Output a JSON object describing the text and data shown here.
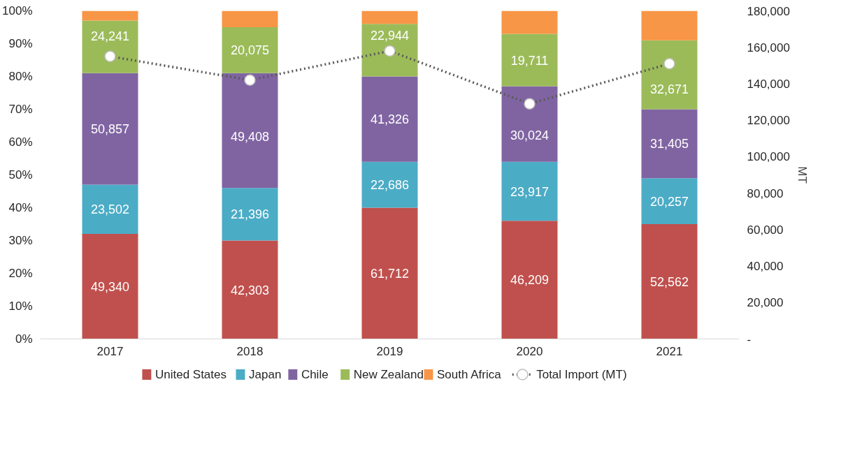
{
  "chart_data": {
    "type": "bar",
    "stacked": true,
    "categories": [
      "2017",
      "2018",
      "2019",
      "2020",
      "2021"
    ],
    "ylim": [
      0,
      100
    ],
    "yticks": [
      {
        "value": 0,
        "label": "0%"
      },
      {
        "value": 10,
        "label": "10%"
      },
      {
        "value": 20,
        "label": "20%"
      },
      {
        "value": 30,
        "label": "30%"
      },
      {
        "value": 40,
        "label": "40%"
      },
      {
        "value": 50,
        "label": "50%"
      },
      {
        "value": 60,
        "label": "60%"
      },
      {
        "value": 70,
        "label": "70%"
      },
      {
        "value": 80,
        "label": "80%"
      },
      {
        "value": 90,
        "label": "90%"
      },
      {
        "value": 100,
        "label": "100%"
      }
    ],
    "y2lim": [
      0,
      180000
    ],
    "y2ticks": [
      {
        "value": 0,
        "label": "-"
      },
      {
        "value": 20000,
        "label": "20,000"
      },
      {
        "value": 40000,
        "label": "40,000"
      },
      {
        "value": 60000,
        "label": "60,000"
      },
      {
        "value": 80000,
        "label": "80,000"
      },
      {
        "value": 100000,
        "label": "100,000"
      },
      {
        "value": 120000,
        "label": "120,000"
      },
      {
        "value": 140000,
        "label": "140,000"
      },
      {
        "value": 160000,
        "label": "160,000"
      },
      {
        "value": 180000,
        "label": "180,000"
      }
    ],
    "y2label": "MT",
    "legend": "bottom",
    "grid": false,
    "series": [
      {
        "name": "United States",
        "color": "#c0504d",
        "values": [
          32,
          30,
          40,
          36,
          35
        ]
      },
      {
        "name": "Japan",
        "color": "#4bacc6",
        "values": [
          15,
          16,
          14,
          18,
          14
        ]
      },
      {
        "name": "Chile",
        "color": "#8064a2",
        "values": [
          34,
          35,
          26,
          23,
          21
        ]
      },
      {
        "name": "New Zealand",
        "color": "#9bbb59",
        "values": [
          16,
          14,
          16,
          16,
          21
        ]
      },
      {
        "name": "South Africa",
        "color": "#f79646",
        "values": [
          3,
          5,
          4,
          7,
          9
        ]
      },
      {
        "name": "Total Import (MT)",
        "type": "line",
        "axis": "y2",
        "color": "#595959",
        "marker": "circle",
        "line_style": "dotted",
        "values": [
          155000,
          142000,
          158000,
          129000,
          151000
        ]
      }
    ],
    "annotations": [
      "49,340",
      "42,303",
      "61,712",
      "46,209",
      "52,562",
      "23,502",
      "21,396",
      "22,686",
      "23,917",
      "20,257",
      "50,857",
      "49,408",
      "41,326",
      "30,024",
      "31,405",
      "24,241",
      "20,075",
      "22,944",
      "19,711",
      "32,671"
    ]
  }
}
